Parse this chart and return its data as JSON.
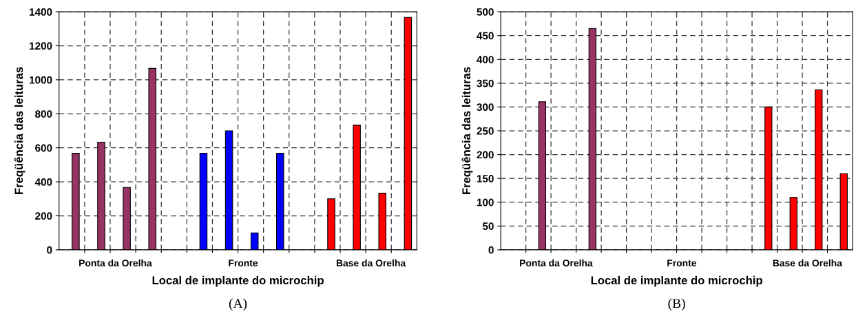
{
  "chart_data": [
    {
      "type": "bar",
      "xlabel": "Local de implante do microchip",
      "ylabel": "Freqüência das leituras",
      "categories": [
        "Ponta da Orelha",
        "Fronte",
        "Base da Orelha"
      ],
      "series": [
        {
          "values": [
            568,
            568,
            300
          ],
          "colors": [
            "#993366",
            "#0000ff",
            "#ff0000"
          ]
        },
        {
          "values": [
            633,
            700,
            733
          ],
          "colors": [
            "#993366",
            "#0000ff",
            "#ff0000"
          ]
        },
        {
          "values": [
            367,
            100,
            333
          ],
          "colors": [
            "#993366",
            "#0000ff",
            "#ff0000"
          ]
        },
        {
          "values": [
            1067,
            568,
            1367
          ],
          "colors": [
            "#993366",
            "#0000ff",
            "#ff0000"
          ]
        }
      ],
      "ylim": [
        0,
        1400
      ],
      "yticks": [
        0,
        200,
        400,
        600,
        800,
        1000,
        1200,
        1400
      ],
      "grid": true,
      "annotations": [
        "(A)"
      ]
    },
    {
      "type": "bar",
      "xlabel": "Local de implante do microchip",
      "ylabel": "Freqüência das leituras",
      "categories": [
        "Ponta da Orelha",
        "Fronte",
        "Base da Orelha"
      ],
      "series": [
        {
          "values": [
            null,
            null,
            300
          ],
          "colors": [
            "#993366",
            "#0000ff",
            "#ff0000"
          ]
        },
        {
          "values": [
            311,
            null,
            110
          ],
          "colors": [
            "#993366",
            "#0000ff",
            "#ff0000"
          ]
        },
        {
          "values": [
            null,
            null,
            336
          ],
          "colors": [
            "#993366",
            "#0000ff",
            "#ff0000"
          ]
        },
        {
          "values": [
            465,
            null,
            160
          ],
          "colors": [
            "#993366",
            "#0000ff",
            "#ff0000"
          ]
        }
      ],
      "ylim": [
        0,
        500
      ],
      "yticks": [
        0,
        50,
        100,
        150,
        200,
        250,
        300,
        350,
        400,
        450,
        500
      ],
      "grid": true,
      "annotations": [
        "(B)"
      ]
    }
  ]
}
